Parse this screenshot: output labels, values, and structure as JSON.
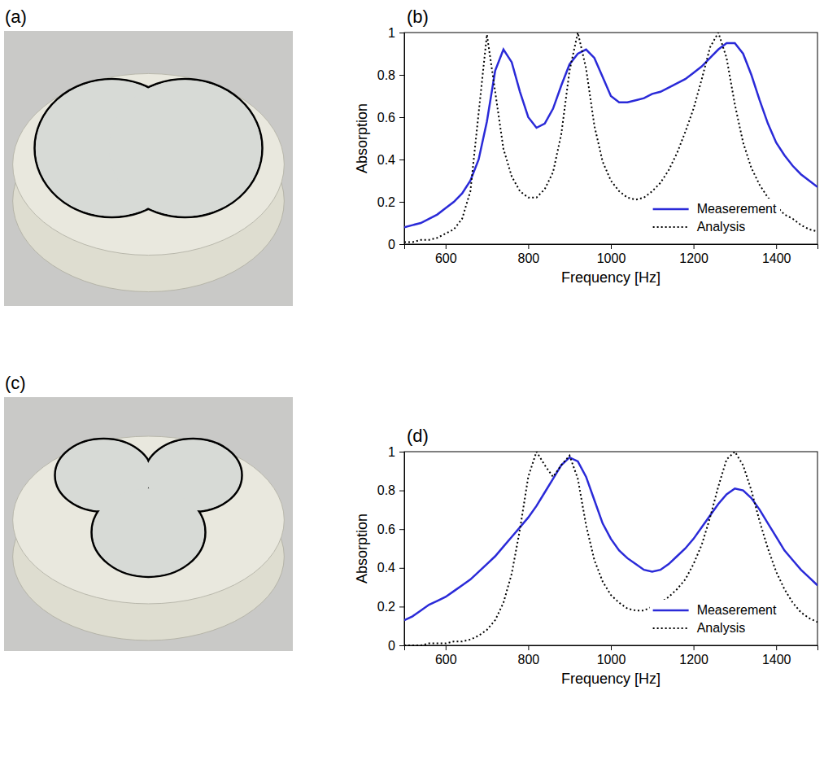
{
  "figure": {
    "panel_labels": [
      "(a)",
      "(b)",
      "(c)",
      "(d)"
    ]
  },
  "chart_data": [
    {
      "type": "line",
      "x_label": "Frequency [Hz]",
      "y_label": "Absorption",
      "xlim": [
        500,
        1500
      ],
      "xticks": [
        600,
        800,
        1000,
        1200,
        1400
      ],
      "ylim": [
        0,
        1
      ],
      "yticks": [
        0,
        0.2,
        0.4,
        0.6,
        0.8,
        1
      ],
      "legend": "lower right",
      "x": [
        500,
        520,
        540,
        560,
        580,
        600,
        620,
        640,
        660,
        680,
        700,
        720,
        740,
        760,
        780,
        800,
        820,
        840,
        860,
        880,
        900,
        920,
        940,
        960,
        980,
        1000,
        1020,
        1040,
        1060,
        1080,
        1100,
        1120,
        1140,
        1160,
        1180,
        1200,
        1220,
        1240,
        1260,
        1280,
        1300,
        1320,
        1340,
        1360,
        1380,
        1400,
        1420,
        1440,
        1460,
        1480,
        1500
      ],
      "series": [
        {
          "name": "Measerement",
          "color": "#2a2ad8",
          "line_style": "solid",
          "values": [
            0.08,
            0.09,
            0.1,
            0.12,
            0.14,
            0.17,
            0.2,
            0.24,
            0.3,
            0.4,
            0.58,
            0.82,
            0.92,
            0.86,
            0.72,
            0.6,
            0.55,
            0.57,
            0.64,
            0.75,
            0.85,
            0.9,
            0.92,
            0.88,
            0.79,
            0.7,
            0.67,
            0.67,
            0.68,
            0.69,
            0.71,
            0.72,
            0.74,
            0.76,
            0.78,
            0.81,
            0.84,
            0.88,
            0.92,
            0.95,
            0.95,
            0.9,
            0.8,
            0.68,
            0.57,
            0.48,
            0.42,
            0.37,
            0.33,
            0.3,
            0.27
          ]
        },
        {
          "name": "Analysis",
          "color": "#000000",
          "line_style": "dotted",
          "values": [
            0.01,
            0.01,
            0.02,
            0.02,
            0.03,
            0.05,
            0.07,
            0.12,
            0.25,
            0.62,
            0.99,
            0.72,
            0.45,
            0.32,
            0.25,
            0.22,
            0.22,
            0.26,
            0.34,
            0.52,
            0.82,
            1.0,
            0.83,
            0.56,
            0.39,
            0.3,
            0.25,
            0.22,
            0.21,
            0.22,
            0.25,
            0.29,
            0.35,
            0.43,
            0.53,
            0.64,
            0.78,
            0.93,
            1.0,
            0.88,
            0.66,
            0.48,
            0.36,
            0.28,
            0.22,
            0.18,
            0.14,
            0.12,
            0.09,
            0.07,
            0.06
          ]
        }
      ]
    },
    {
      "type": "line",
      "x_label": "Frequency [Hz]",
      "y_label": "Absorption",
      "xlim": [
        500,
        1500
      ],
      "xticks": [
        600,
        800,
        1000,
        1200,
        1400
      ],
      "ylim": [
        0,
        1
      ],
      "yticks": [
        0,
        0.2,
        0.4,
        0.6,
        0.8,
        1
      ],
      "legend": "lower right",
      "x": [
        500,
        520,
        540,
        560,
        580,
        600,
        620,
        640,
        660,
        680,
        700,
        720,
        740,
        760,
        780,
        800,
        820,
        840,
        860,
        880,
        900,
        920,
        940,
        960,
        980,
        1000,
        1020,
        1040,
        1060,
        1080,
        1100,
        1120,
        1140,
        1160,
        1180,
        1200,
        1220,
        1240,
        1260,
        1280,
        1300,
        1320,
        1340,
        1360,
        1380,
        1400,
        1420,
        1440,
        1460,
        1480,
        1500
      ],
      "series": [
        {
          "name": "Measerement",
          "color": "#2a2ad8",
          "line_style": "solid",
          "values": [
            0.13,
            0.15,
            0.18,
            0.21,
            0.23,
            0.25,
            0.28,
            0.31,
            0.34,
            0.38,
            0.42,
            0.46,
            0.51,
            0.56,
            0.61,
            0.66,
            0.72,
            0.79,
            0.86,
            0.93,
            0.97,
            0.95,
            0.87,
            0.75,
            0.63,
            0.55,
            0.49,
            0.45,
            0.42,
            0.39,
            0.38,
            0.39,
            0.42,
            0.46,
            0.5,
            0.55,
            0.61,
            0.67,
            0.73,
            0.78,
            0.81,
            0.8,
            0.76,
            0.7,
            0.63,
            0.56,
            0.49,
            0.44,
            0.39,
            0.35,
            0.31
          ]
        },
        {
          "name": "Analysis",
          "color": "#000000",
          "line_style": "dotted",
          "values": [
            0,
            0,
            0,
            0.01,
            0.01,
            0.01,
            0.02,
            0.02,
            0.03,
            0.05,
            0.08,
            0.13,
            0.22,
            0.37,
            0.6,
            0.87,
            1.0,
            0.93,
            0.87,
            0.93,
            0.98,
            0.86,
            0.62,
            0.44,
            0.33,
            0.26,
            0.22,
            0.19,
            0.18,
            0.18,
            0.2,
            0.22,
            0.25,
            0.29,
            0.34,
            0.42,
            0.52,
            0.66,
            0.82,
            0.96,
            1.0,
            0.93,
            0.8,
            0.64,
            0.5,
            0.38,
            0.29,
            0.22,
            0.17,
            0.14,
            0.12
          ]
        }
      ]
    }
  ]
}
